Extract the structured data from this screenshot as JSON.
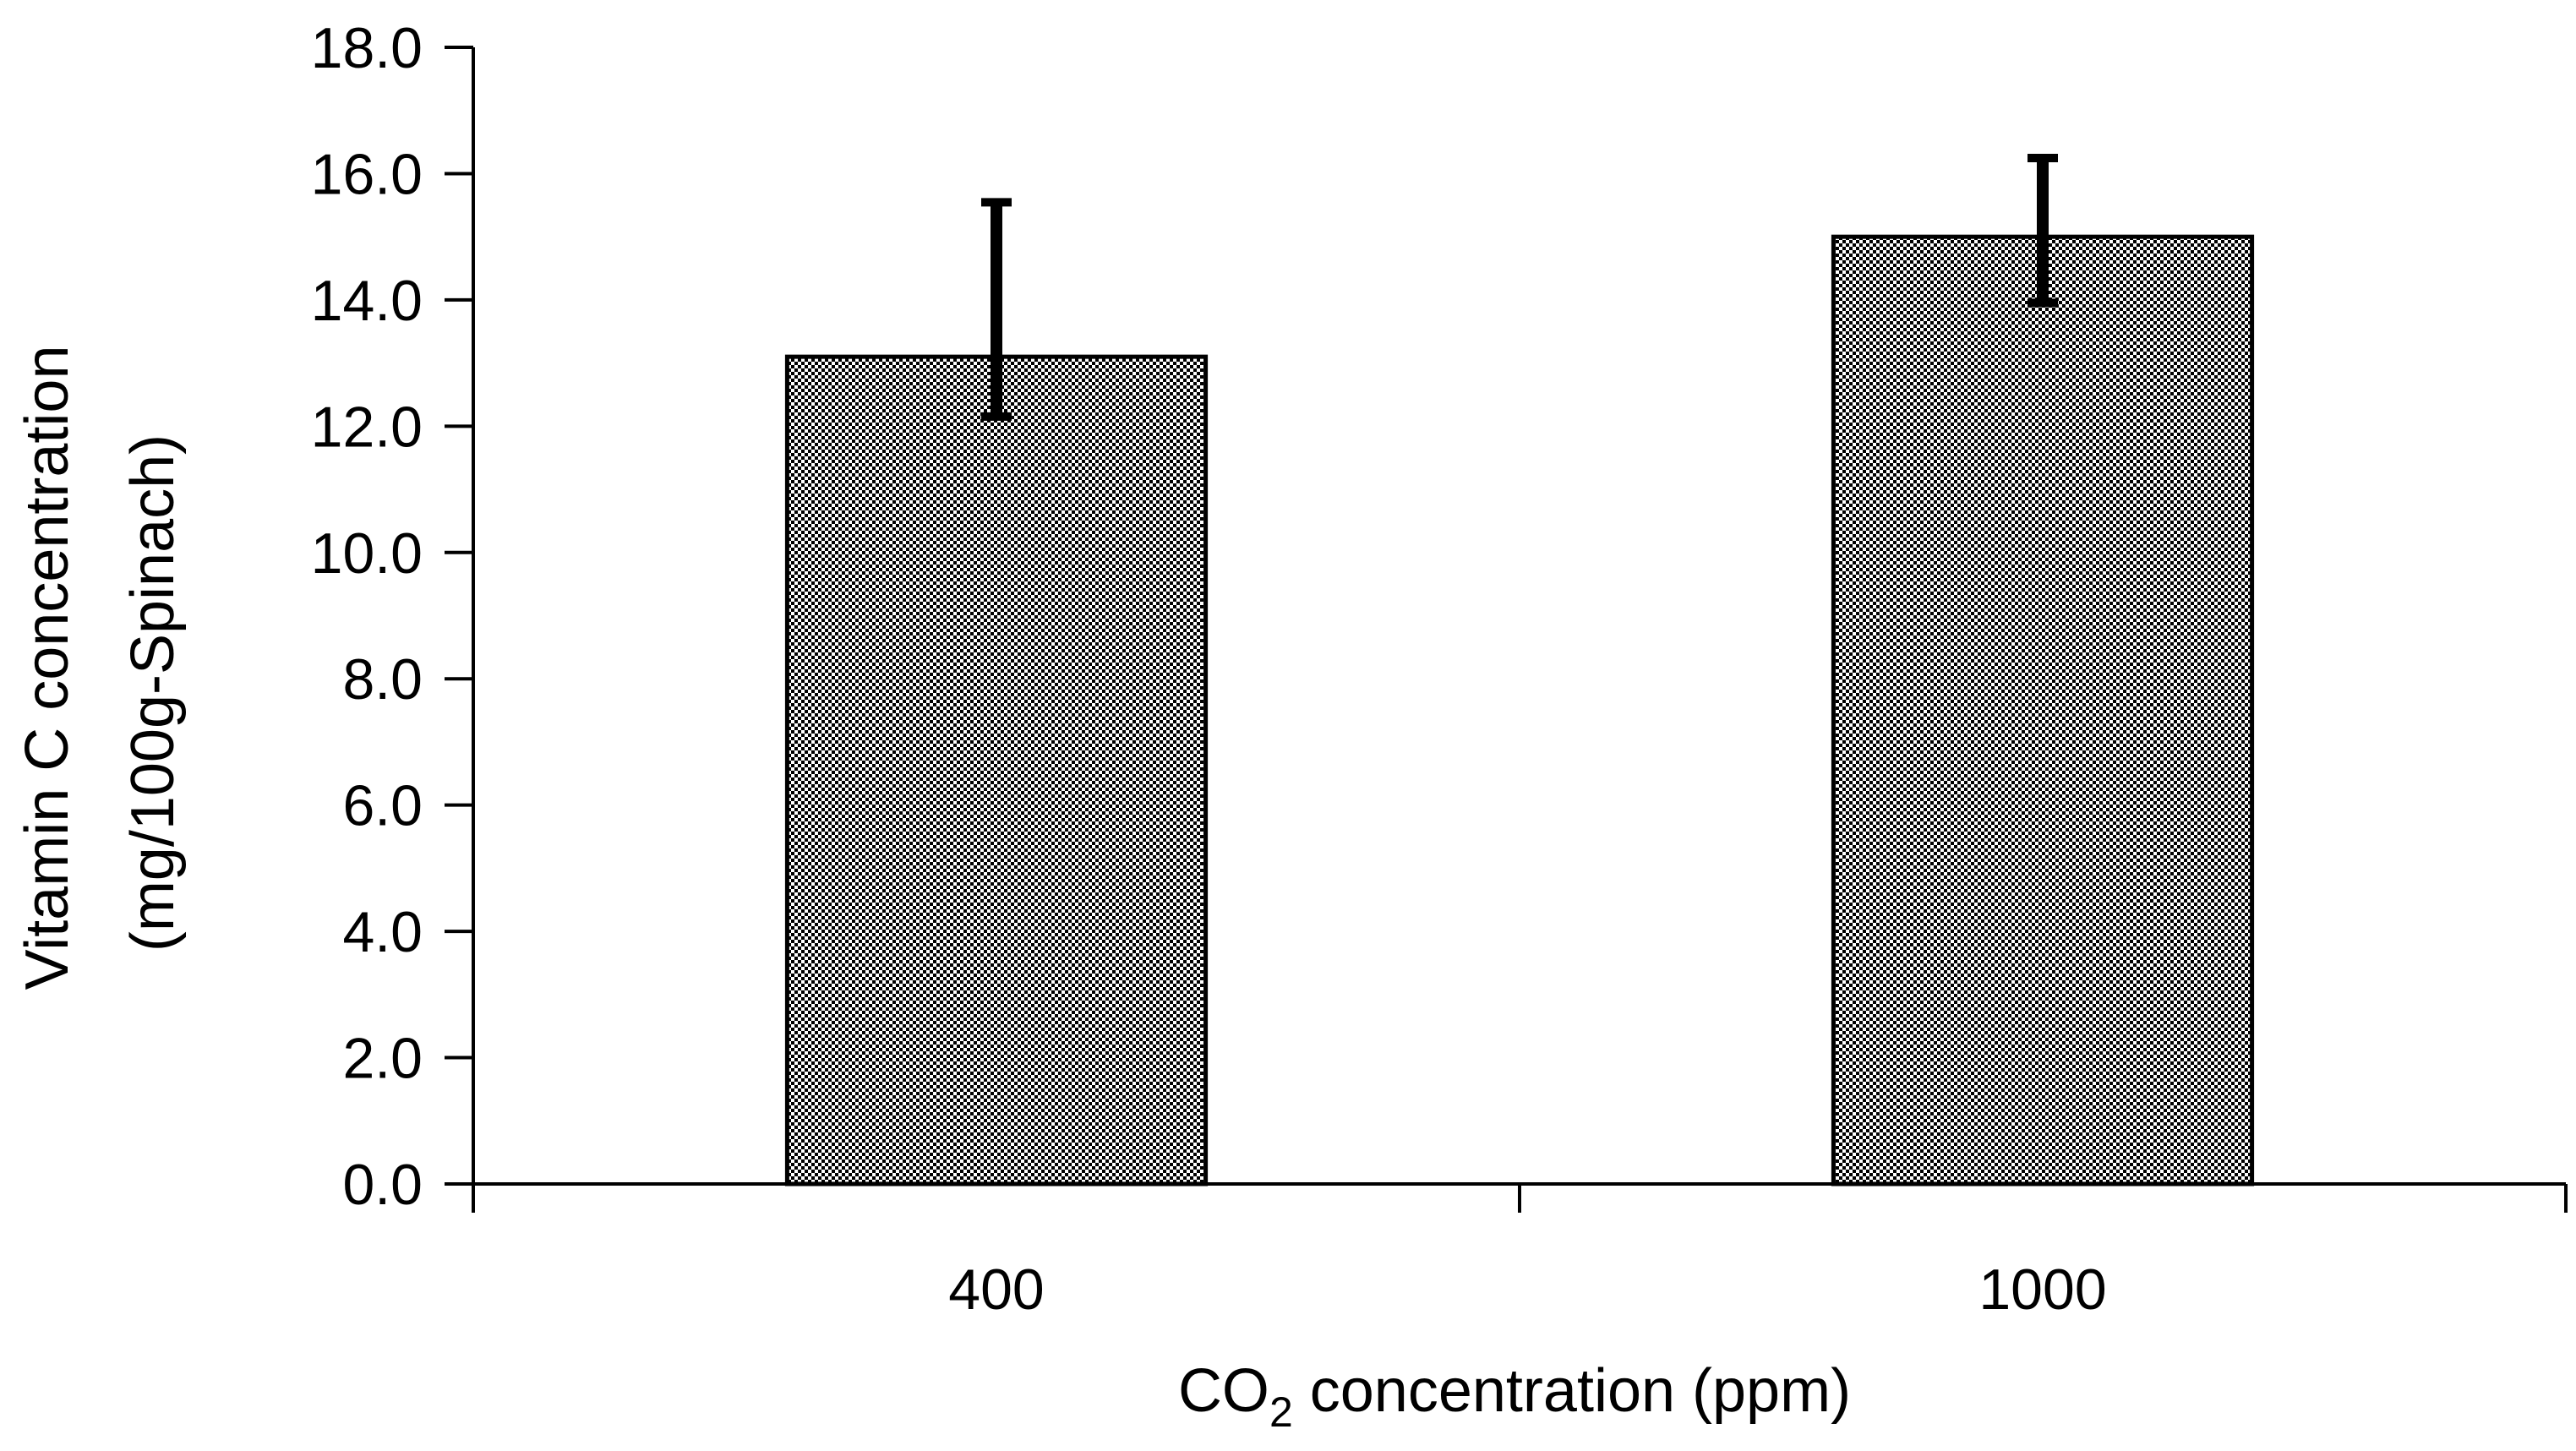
{
  "chart_data": {
    "type": "bar",
    "categories": [
      "400",
      "1000"
    ],
    "series": [
      {
        "name": "Vitamin C concentration",
        "values": [
          13.1,
          15.0
        ],
        "error_upper": [
          15.6,
          16.3
        ],
        "error_lower": [
          12.1,
          13.9
        ]
      }
    ],
    "ylim": [
      0,
      18
    ],
    "yticks": [
      "0.0",
      "2.0",
      "4.0",
      "6.0",
      "8.0",
      "10.0",
      "12.0",
      "14.0",
      "16.0",
      "18.0"
    ],
    "ylabel_line1": "Vitamin C concentration",
    "ylabel_line2": "(mg/100g-Spinach)",
    "xlabel_prefix": "CO",
    "xlabel_sub": "2",
    "xlabel_suffix": " concentration (ppm)",
    "grid": false,
    "legend": "none",
    "bar_fill": "crosshatch-dots",
    "colors": {
      "bar_fg": "#000000",
      "bar_bg": "#ffffff",
      "axis": "#000000"
    }
  }
}
